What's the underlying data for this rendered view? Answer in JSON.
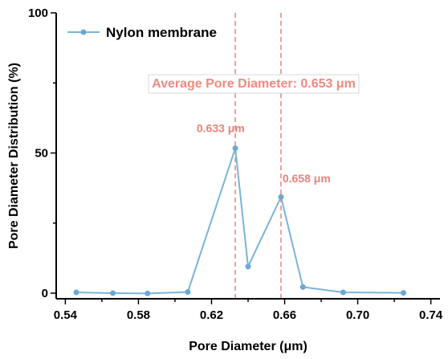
{
  "chart_data": {
    "type": "line",
    "xlabel": "Pore Diameter (μm)",
    "ylabel": "Pore Diameter Distribution (%)",
    "xlim": [
      0.535,
      0.745
    ],
    "ylim": [
      -2,
      100
    ],
    "x_ticks": [
      0.54,
      0.56,
      0.58,
      0.6,
      0.62,
      0.64,
      0.66,
      0.68,
      0.7,
      0.72,
      0.74
    ],
    "x_tick_labels": [
      "0.54",
      "0.58",
      "0.62",
      "0.66",
      "0.70",
      "0.74"
    ],
    "x_tick_label_values": [
      0.54,
      0.58,
      0.62,
      0.66,
      0.7,
      0.74
    ],
    "y_ticks": [
      0,
      50,
      100
    ],
    "y_tick_labels": [
      "0",
      "50",
      "100"
    ],
    "series": [
      {
        "name": "Nylon membrane",
        "color": "#7ab4d8",
        "x": [
          0.546,
          0.566,
          0.585,
          0.607,
          0.633,
          0.64,
          0.658,
          0.67,
          0.692,
          0.725
        ],
        "y": [
          0.3,
          0.0,
          -0.1,
          0.4,
          51.7,
          9.5,
          34.3,
          2.2,
          0.3,
          0.1
        ]
      }
    ],
    "vertical_lines": [
      0.633,
      0.658
    ],
    "annotations": [
      {
        "text": "0.633 μm",
        "x": 0.625,
        "y": 57.5
      },
      {
        "text": "0.658 μm",
        "x": 0.672,
        "y": 39.5
      }
    ],
    "average_label": "Average Pore Diameter: 0.653 μm",
    "legend": "top-left",
    "grid": false
  }
}
